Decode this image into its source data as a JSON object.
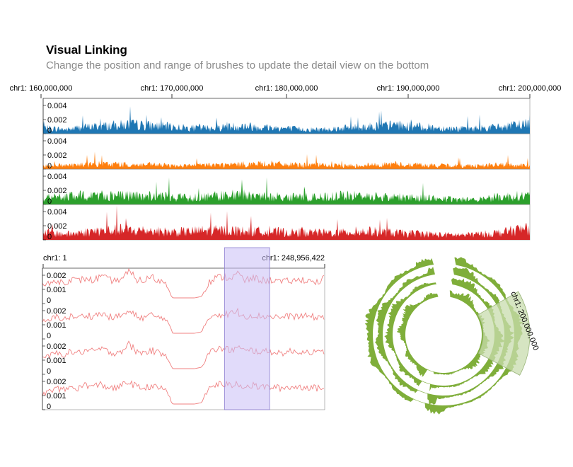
{
  "header": {
    "title": "Visual Linking",
    "subtitle": "Change the position and range of brushes to update the detail view on the bottom"
  },
  "colors": {
    "series": [
      "#1f77b4",
      "#ff7f0e",
      "#2ca02c",
      "#d62728"
    ],
    "detail_line": "#f08080",
    "linear_brush": "#c9bdf5",
    "circular_tracks": "#7fae3a",
    "circular_brush": "#c8dcae"
  },
  "chart_data": [
    {
      "type": "area",
      "name": "overview",
      "x_axis_labels": [
        "chr1: 160,000,000",
        "chr1: 170,000,000",
        "chr1: 180,000,000",
        "chr1: 190,000,000",
        "chr1: 200,000,000"
      ],
      "x_ticks": [
        160000000,
        170000000,
        180000000,
        190000000,
        200000000
      ],
      "xlim": [
        160000000,
        200000000
      ],
      "ylim": [
        0,
        0.005
      ],
      "y_tick_labels": [
        "0.004",
        "0.002",
        "0"
      ],
      "y_ticks": [
        0.004,
        0.002,
        0
      ],
      "series": [
        {
          "values": [
            0.0008,
            0.0007,
            0.0006,
            0.0009,
            0.001,
            0.0011,
            0.0012,
            0.0013,
            0.0012,
            0.0011,
            0.001,
            0.0009,
            0.0008,
            0.0008,
            0.0009,
            0.001,
            0.0011,
            0.001,
            0.0009,
            0.0008,
            0.0007,
            0.0006,
            0.0006,
            0.0007,
            0.0008,
            0.0009,
            0.001,
            0.0011,
            0.0012,
            0.0011,
            0.001,
            0.0009,
            0.0008,
            0.0007,
            0.0007,
            0.0008,
            0.0009,
            0.001,
            0.0012,
            0.0016
          ]
        },
        {
          "values": [
            0.0005,
            0.0005,
            0.0006,
            0.0006,
            0.0007,
            0.0007,
            0.0007,
            0.0006,
            0.0006,
            0.0006,
            0.0005,
            0.0005,
            0.0005,
            0.0006,
            0.0006,
            0.0006,
            0.0007,
            0.0007,
            0.0008,
            0.0007,
            0.0006,
            0.0006,
            0.0006,
            0.0005,
            0.0005,
            0.0005,
            0.0006,
            0.0006,
            0.0007,
            0.0006,
            0.0006,
            0.0005,
            0.0005,
            0.0005,
            0.0005,
            0.0005,
            0.0006,
            0.0006,
            0.0005,
            0.0005
          ]
        },
        {
          "values": [
            0.001,
            0.001,
            0.0011,
            0.0012,
            0.0013,
            0.0013,
            0.0012,
            0.0012,
            0.0012,
            0.0011,
            0.0011,
            0.001,
            0.001,
            0.0011,
            0.0012,
            0.0013,
            0.0012,
            0.0012,
            0.0011,
            0.0011,
            0.001,
            0.001,
            0.001,
            0.0011,
            0.0012,
            0.0012,
            0.0012,
            0.0011,
            0.001,
            0.001,
            0.001,
            0.0009,
            0.0008,
            0.0007,
            0.0007,
            0.0008,
            0.001,
            0.0011,
            0.0012,
            0.0012
          ]
        },
        {
          "values": [
            0.0011,
            0.0009,
            0.0008,
            0.001,
            0.0012,
            0.0013,
            0.0014,
            0.0013,
            0.0013,
            0.0012,
            0.0011,
            0.0011,
            0.0012,
            0.0013,
            0.0013,
            0.0013,
            0.0012,
            0.0012,
            0.0011,
            0.0011,
            0.001,
            0.001,
            0.001,
            0.001,
            0.001,
            0.0011,
            0.0012,
            0.0011,
            0.001,
            0.0009,
            0.0009,
            0.0008,
            0.0007,
            0.0007,
            0.0007,
            0.0008,
            0.0009,
            0.0011,
            0.0014,
            0.0016
          ]
        }
      ]
    },
    {
      "type": "line",
      "name": "detail",
      "x_axis_labels": [
        "chr1: 1",
        "chr1: 248,956,422"
      ],
      "ylim": [
        0,
        0.0025
      ],
      "y_tick_labels": [
        "0.002",
        "0.001",
        "0"
      ],
      "y_ticks": [
        0.002,
        0.001,
        0
      ],
      "brush": {
        "x_start_fraction": 0.645,
        "x_end_fraction": 0.805
      },
      "series": [
        {
          "values": [
            0.0013,
            0.0014,
            0.0016,
            0.0015,
            0.0017,
            0.0016,
            0.0018,
            0.0016,
            0.0019,
            0.0017,
            0.0016,
            0.0018,
            0.0022,
            0.0017,
            0.0016,
            0.0019,
            0.0016,
            0.0015,
            0.0004,
            0.0004,
            0.0004,
            0.0004,
            0.0005,
            0.0015,
            0.0018,
            0.0019,
            0.0018,
            0.0021,
            0.0016,
            0.0018,
            0.0017,
            0.0016,
            0.0017,
            0.0015,
            0.0016,
            0.0016,
            0.0017,
            0.0016,
            0.0015,
            0.0018
          ]
        },
        {
          "values": [
            0.0012,
            0.0013,
            0.0016,
            0.0014,
            0.0016,
            0.0015,
            0.0017,
            0.0016,
            0.0018,
            0.0016,
            0.0015,
            0.0017,
            0.0019,
            0.0016,
            0.0015,
            0.0017,
            0.0015,
            0.0015,
            0.0004,
            0.0004,
            0.0004,
            0.0004,
            0.0005,
            0.0015,
            0.0018,
            0.0017,
            0.0018,
            0.0019,
            0.0016,
            0.0017,
            0.0016,
            0.0016,
            0.0016,
            0.0015,
            0.0016,
            0.0016,
            0.0016,
            0.0016,
            0.0015,
            0.0016
          ]
        },
        {
          "values": [
            0.0012,
            0.0013,
            0.0015,
            0.0014,
            0.0016,
            0.0015,
            0.0017,
            0.0016,
            0.0018,
            0.0016,
            0.0015,
            0.0017,
            0.0021,
            0.0016,
            0.0015,
            0.0017,
            0.0015,
            0.0015,
            0.0004,
            0.0004,
            0.0004,
            0.0004,
            0.0005,
            0.0015,
            0.0018,
            0.0018,
            0.0017,
            0.0019,
            0.0016,
            0.0017,
            0.0016,
            0.0016,
            0.0016,
            0.0015,
            0.0016,
            0.0016,
            0.0016,
            0.0016,
            0.0015,
            0.0016
          ]
        },
        {
          "values": [
            0.0011,
            0.0013,
            0.0015,
            0.0014,
            0.0016,
            0.0015,
            0.0018,
            0.0016,
            0.0018,
            0.0016,
            0.0015,
            0.0017,
            0.002,
            0.0016,
            0.0015,
            0.0017,
            0.0015,
            0.0015,
            0.0004,
            0.0004,
            0.0004,
            0.0004,
            0.0005,
            0.0015,
            0.0018,
            0.0018,
            0.0017,
            0.0019,
            0.0016,
            0.0017,
            0.0016,
            0.0016,
            0.0016,
            0.0015,
            0.0016,
            0.0016,
            0.0016,
            0.0016,
            0.0015,
            0.0016
          ]
        }
      ]
    },
    {
      "type": "area",
      "name": "circular",
      "track_count": 4,
      "brush_label": "chr1: 200,000,000",
      "brush_range_degrees": [
        60,
        118
      ]
    }
  ]
}
